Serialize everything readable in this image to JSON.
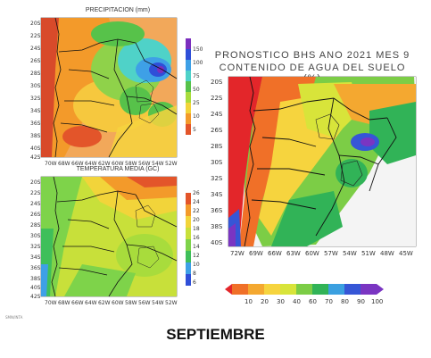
{
  "precip": {
    "title": "PRECIPITACION (mm)",
    "lat_ticks": [
      "20S",
      "22S",
      "24S",
      "26S",
      "28S",
      "30S",
      "32S",
      "34S",
      "36S",
      "38S",
      "40S",
      "42S"
    ],
    "lon_ticks": [
      "70W",
      "68W",
      "66W",
      "64W",
      "62W",
      "60W",
      "58W",
      "56W",
      "54W",
      "52W"
    ],
    "colorbar_ticks": [
      "150",
      "100",
      "75",
      "50",
      "25",
      "10",
      "5"
    ],
    "colors": [
      "#7b2fbe",
      "#2f4fd8",
      "#3ea0e6",
      "#4fd2c8",
      "#57c24a",
      "#a8dc3c",
      "#f2d43a",
      "#f39a2a",
      "#e3552a"
    ]
  },
  "temp": {
    "title": "TEMPERATURA MEDIA (GC)",
    "lat_ticks": [
      "20S",
      "22S",
      "24S",
      "26S",
      "28S",
      "30S",
      "32S",
      "34S",
      "36S",
      "38S",
      "40S",
      "42S"
    ],
    "lon_ticks": [
      "70W",
      "68W",
      "66W",
      "64W",
      "62W",
      "60W",
      "58W",
      "56W",
      "54W",
      "52W"
    ],
    "colorbar_ticks": [
      "26",
      "24",
      "22",
      "20",
      "18",
      "16",
      "14",
      "12",
      "10",
      "8",
      "6"
    ],
    "colors": [
      "#e3552a",
      "#f39a2a",
      "#f2d43a",
      "#c8e03a",
      "#7ed34a",
      "#3fbf5a",
      "#3ea0e6",
      "#2f4fd8"
    ]
  },
  "soil": {
    "title_line1": "PRONOSTICO BHS ANO 2021 MES 9",
    "title_line2": "CONTENIDO DE AGUA DEL SUELO (%)",
    "lat_ticks": [
      "20S",
      "22S",
      "24S",
      "26S",
      "28S",
      "30S",
      "32S",
      "34S",
      "36S",
      "38S",
      "40S"
    ],
    "lon_ticks": [
      "72W",
      "69W",
      "66W",
      "63W",
      "60W",
      "57W",
      "54W",
      "51W",
      "48W",
      "45W"
    ],
    "legend_labels": [
      "10",
      "20",
      "30",
      "40",
      "60",
      "70",
      "80",
      "90",
      "100"
    ],
    "legend_colors": [
      "#e3262a",
      "#f07028",
      "#f4a830",
      "#f6d43e",
      "#d8e43a",
      "#7ccd46",
      "#31b357",
      "#3ba0e0",
      "#3656d6",
      "#7a35c2"
    ]
  },
  "footer": {
    "month": "SEPTIEMBRE",
    "credit": "SMN/INTA"
  }
}
